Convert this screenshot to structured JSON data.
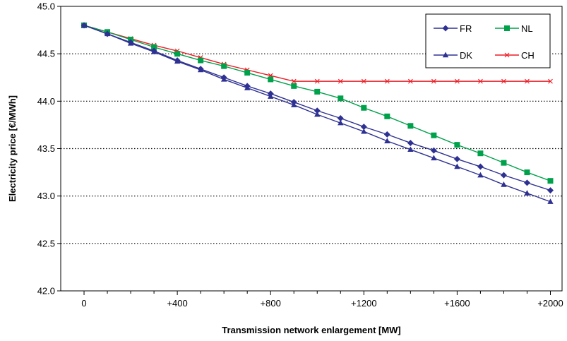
{
  "chart_data": {
    "type": "line",
    "title": "",
    "xlabel": "Transmission network enlargement [MW]",
    "ylabel": "Electricity price [€/MWh]",
    "xlim": [
      -100,
      2050
    ],
    "ylim": [
      42.0,
      45.0
    ],
    "x_ticks": [
      {
        "value": 0,
        "label": "0"
      },
      {
        "value": 400,
        "label": "+400"
      },
      {
        "value": 800,
        "label": "+800"
      },
      {
        "value": 1200,
        "label": "+1200"
      },
      {
        "value": 1600,
        "label": "+1600"
      },
      {
        "value": 2000,
        "label": "+2000"
      }
    ],
    "y_ticks": [
      {
        "value": 42.0,
        "label": "42.0"
      },
      {
        "value": 42.5,
        "label": "42.5"
      },
      {
        "value": 43.0,
        "label": "43.0"
      },
      {
        "value": 43.5,
        "label": "43.5"
      },
      {
        "value": 44.0,
        "label": "44.0"
      },
      {
        "value": 44.5,
        "label": "44.5"
      },
      {
        "value": 45.0,
        "label": "45.0"
      }
    ],
    "grid": "horizontal dotted",
    "legend_position": "top-right",
    "x": [
      0,
      100,
      200,
      300,
      400,
      500,
      600,
      700,
      800,
      900,
      1000,
      1100,
      1200,
      1300,
      1400,
      1500,
      1600,
      1700,
      1800,
      1900,
      2000
    ],
    "series": [
      {
        "name": "FR",
        "color": "#2e3192",
        "marker": "diamond",
        "values": [
          44.8,
          44.71,
          44.62,
          44.53,
          44.43,
          44.34,
          44.25,
          44.16,
          44.08,
          43.99,
          43.9,
          43.82,
          43.73,
          43.65,
          43.56,
          43.48,
          43.39,
          43.31,
          43.22,
          43.14,
          43.06
        ]
      },
      {
        "name": "NL",
        "color": "#00a14b",
        "marker": "square",
        "values": [
          44.8,
          44.73,
          44.65,
          44.57,
          44.5,
          44.43,
          44.37,
          44.3,
          44.23,
          44.16,
          44.1,
          44.03,
          43.93,
          43.84,
          43.74,
          43.64,
          43.54,
          43.45,
          43.35,
          43.25,
          43.16
        ]
      },
      {
        "name": "DK",
        "color": "#2e3192",
        "marker": "triangle",
        "values": [
          44.8,
          44.71,
          44.61,
          44.52,
          44.42,
          44.33,
          44.23,
          44.14,
          44.05,
          43.96,
          43.86,
          43.77,
          43.68,
          43.58,
          43.49,
          43.4,
          43.31,
          43.22,
          43.12,
          43.03,
          42.94
        ]
      },
      {
        "name": "CH",
        "color": "#ed1c24",
        "marker": "x",
        "values": [
          44.8,
          44.73,
          44.66,
          44.59,
          44.53,
          44.46,
          44.39,
          44.33,
          44.27,
          44.21,
          44.21,
          44.21,
          44.21,
          44.21,
          44.21,
          44.21,
          44.21,
          44.21,
          44.21,
          44.21,
          44.21
        ]
      }
    ]
  }
}
